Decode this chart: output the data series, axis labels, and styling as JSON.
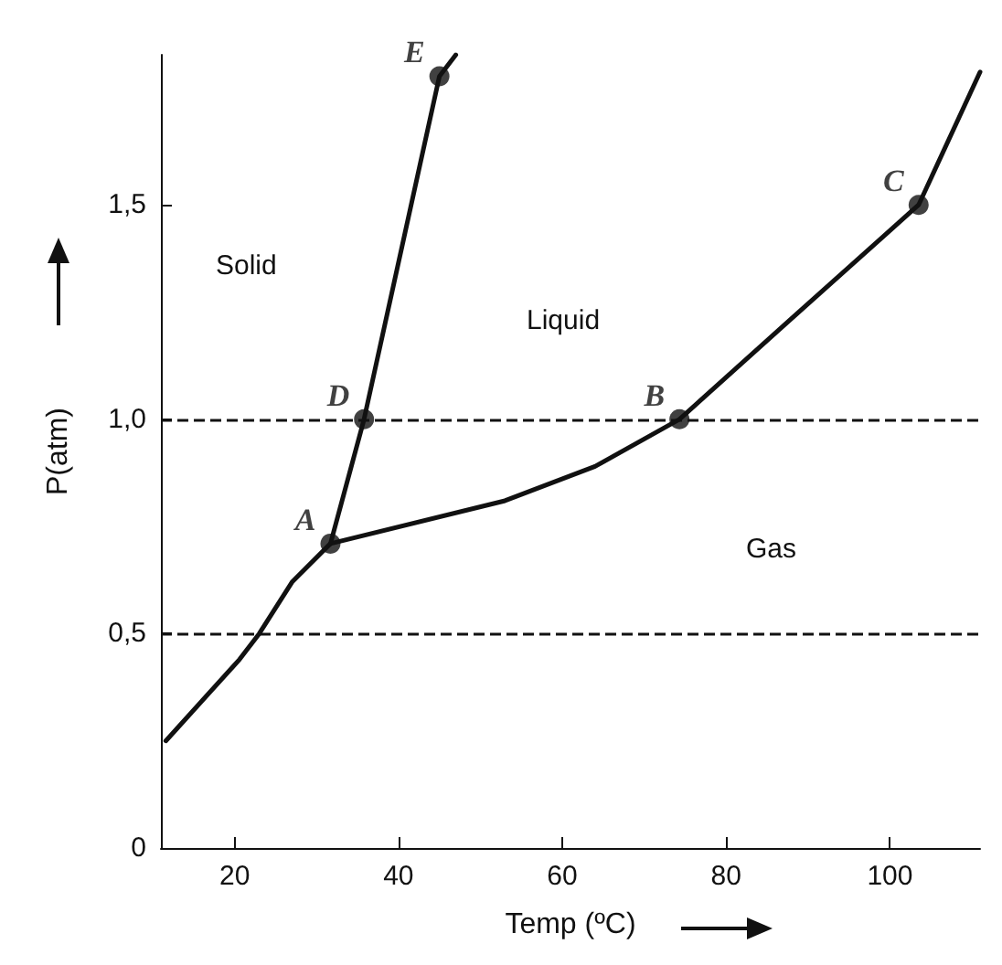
{
  "chart_data": {
    "type": "line",
    "xlabel": "Temp (ºC)",
    "ylabel": "P(atm)",
    "xlim": [
      11,
      111
    ],
    "ylim": [
      0,
      1.85
    ],
    "xticks": [
      20,
      40,
      60,
      80,
      100
    ],
    "yticks": [
      0,
      {
        "value": 0.5,
        "label": "0,5"
      },
      {
        "value": 1.0,
        "label": "1,0"
      },
      {
        "value": 1.5,
        "label": "1,5"
      }
    ],
    "grid": false,
    "series": [
      {
        "color": "#111111",
        "marker": "none",
        "x": [
          11.6,
          20.6,
          23,
          27,
          31.7
        ],
        "values": [
          0.25,
          0.44,
          0.5,
          0.62,
          0.71
        ]
      },
      {
        "color": "#111111",
        "marker": "none",
        "x": [
          31.7,
          53,
          64,
          74.3,
          87.7,
          103.5,
          111
        ],
        "values": [
          0.71,
          0.81,
          0.89,
          1.0,
          1.23,
          1.5,
          1.81
        ]
      },
      {
        "color": "#111111",
        "marker": "none",
        "x": [
          31.7,
          35.8,
          45,
          47
        ],
        "values": [
          0.71,
          1.0,
          1.8,
          1.85
        ]
      },
      {
        "type": "scatter",
        "color": "#111111",
        "marker": "circle",
        "x": [
          31.7,
          35.8,
          45,
          74.3,
          103.5
        ],
        "values": [
          0.71,
          1.0,
          1.8,
          1.0,
          1.5
        ]
      }
    ],
    "ref_lines": [
      {
        "axis": "y",
        "value": 0.5,
        "color": "#111111",
        "line_style": "dashed"
      },
      {
        "axis": "y",
        "value": 1.0,
        "color": "#111111",
        "line_style": "dashed"
      }
    ],
    "annotations": [
      {
        "text": "A",
        "x": 31.7,
        "y": 0.71
      },
      {
        "text": "D",
        "x": 35.8,
        "y": 1.0
      },
      {
        "text": "E",
        "x": 45,
        "y": 1.8
      },
      {
        "text": "B",
        "x": 74.3,
        "y": 1.0
      },
      {
        "text": "C",
        "x": 103.5,
        "y": 1.5
      },
      "Solid",
      "Liquid",
      "Gas"
    ]
  }
}
